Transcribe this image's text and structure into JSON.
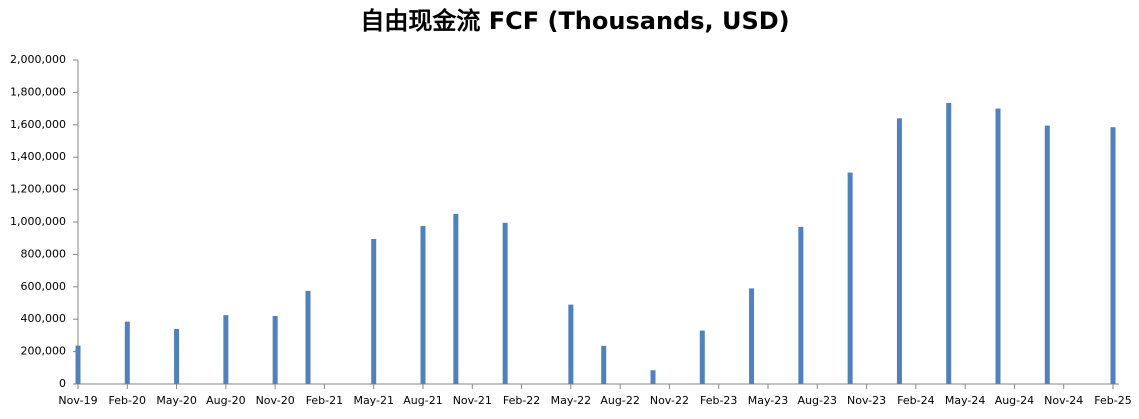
{
  "chart_data": {
    "type": "bar",
    "title": "自由现金流 FCF (Thousands, USD)",
    "x": [
      "2019-11",
      "2020-02",
      "2020-05",
      "2020-08",
      "2020-11",
      "2021-01",
      "2021-05",
      "2021-08",
      "2021-10",
      "2022-01",
      "2022-05",
      "2022-07",
      "2022-10",
      "2023-01",
      "2023-04",
      "2023-07",
      "2023-10",
      "2024-01",
      "2024-04",
      "2024-07",
      "2024-10",
      "2025-02"
    ],
    "values": [
      237000,
      385000,
      340000,
      425000,
      420000,
      575000,
      895000,
      975000,
      1050000,
      995000,
      490000,
      235000,
      85000,
      330000,
      590000,
      970000,
      1305000,
      1640000,
      1735000,
      1700000,
      1595000,
      1585000
    ],
    "color": "#4f81bd",
    "xlim": [
      "2019-11",
      "2025-02"
    ],
    "xticks": [
      {
        "value": "2019-11",
        "label": "Nov-19"
      },
      {
        "value": "2020-02",
        "label": "Feb-20"
      },
      {
        "value": "2020-05",
        "label": "May-20"
      },
      {
        "value": "2020-08",
        "label": "Aug-20"
      },
      {
        "value": "2020-11",
        "label": "Nov-20"
      },
      {
        "value": "2021-02",
        "label": "Feb-21"
      },
      {
        "value": "2021-05",
        "label": "May-21"
      },
      {
        "value": "2021-08",
        "label": "Aug-21"
      },
      {
        "value": "2021-11",
        "label": "Nov-21"
      },
      {
        "value": "2022-02",
        "label": "Feb-22"
      },
      {
        "value": "2022-05",
        "label": "May-22"
      },
      {
        "value": "2022-08",
        "label": "Aug-22"
      },
      {
        "value": "2022-11",
        "label": "Nov-22"
      },
      {
        "value": "2023-02",
        "label": "Feb-23"
      },
      {
        "value": "2023-05",
        "label": "May-23"
      },
      {
        "value": "2023-08",
        "label": "Aug-23"
      },
      {
        "value": "2023-11",
        "label": "Nov-23"
      },
      {
        "value": "2024-02",
        "label": "Feb-24"
      },
      {
        "value": "2024-05",
        "label": "May-24"
      },
      {
        "value": "2024-08",
        "label": "Aug-24"
      },
      {
        "value": "2024-11",
        "label": "Nov-24"
      },
      {
        "value": "2025-02",
        "label": "Feb-25"
      }
    ],
    "ylim": [
      0,
      2000000
    ],
    "yticks": [
      0,
      {
        "value": 200000,
        "label": "200,000"
      },
      {
        "value": 400000,
        "label": "400,000"
      },
      {
        "value": 600000,
        "label": "600,000"
      },
      {
        "value": 800000,
        "label": "800,000"
      },
      {
        "value": 1000000,
        "label": "1,000,000"
      },
      {
        "value": 1200000,
        "label": "1,200,000"
      },
      {
        "value": 1400000,
        "label": "1,400,000"
      },
      {
        "value": 1600000,
        "label": "1,600,000"
      },
      {
        "value": 1800000,
        "label": "1,800,000"
      },
      {
        "value": 2000000,
        "label": "2,000,000"
      }
    ]
  }
}
